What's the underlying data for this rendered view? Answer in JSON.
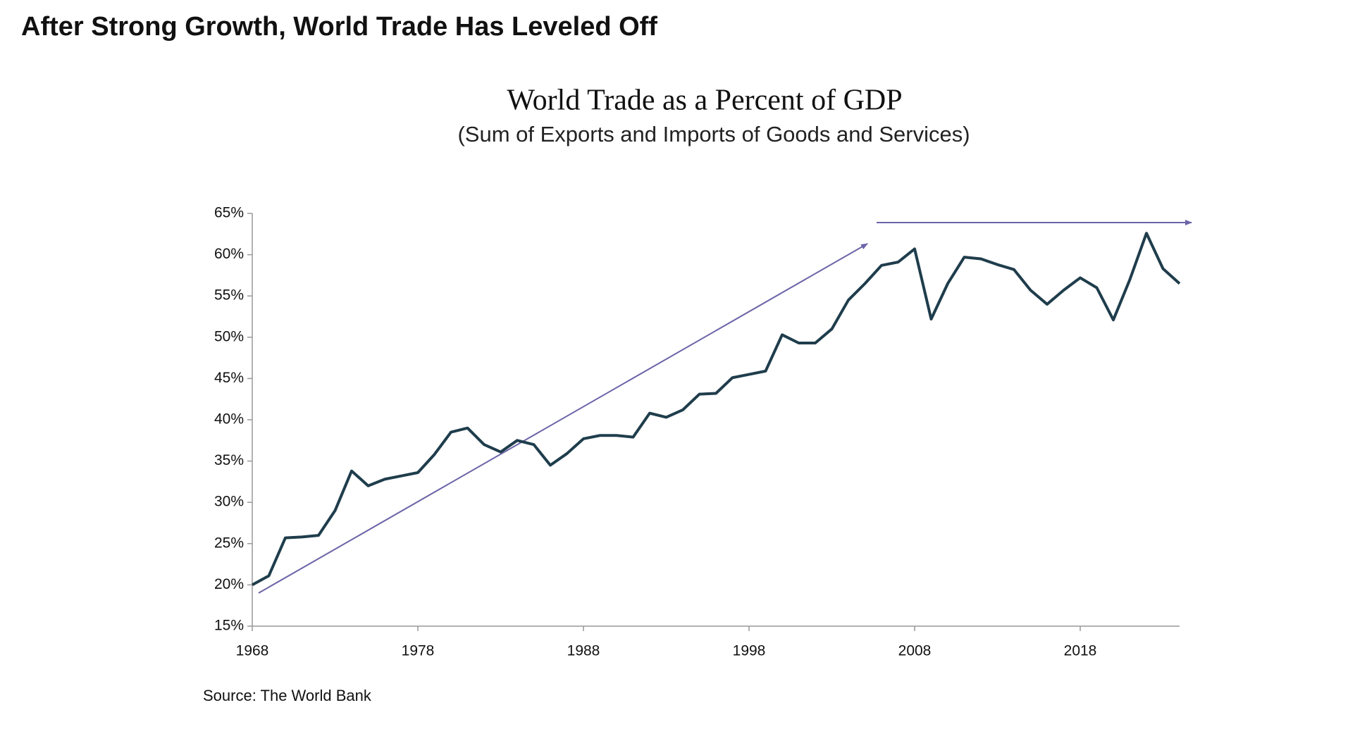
{
  "heading": "After Strong Growth, World Trade Has Leveled Off",
  "chart_data": {
    "type": "line",
    "title": "World Trade as a Percent of GDP",
    "subtitle": "(Sum of Exports and Imports of Goods and Services)",
    "source": "Source: The World Bank",
    "x": [
      1968,
      1969,
      1970,
      1971,
      1972,
      1973,
      1974,
      1975,
      1976,
      1977,
      1978,
      1979,
      1980,
      1981,
      1982,
      1983,
      1984,
      1985,
      1986,
      1987,
      1988,
      1989,
      1990,
      1991,
      1992,
      1993,
      1994,
      1995,
      1996,
      1997,
      1998,
      1999,
      2000,
      2001,
      2002,
      2003,
      2004,
      2005,
      2006,
      2007,
      2008,
      2009,
      2010,
      2011,
      2012,
      2013,
      2014,
      2015,
      2016,
      2017,
      2018,
      2019,
      2020,
      2021,
      2022,
      2023,
      2024
    ],
    "series": [
      {
        "name": "World Trade",
        "color": "#1f3d4c",
        "values": [
          20.0,
          21.1,
          25.7,
          25.8,
          26.0,
          29.0,
          33.8,
          32.0,
          32.8,
          33.2,
          33.6,
          35.8,
          38.5,
          39.0,
          37.0,
          36.1,
          37.5,
          37.0,
          34.5,
          35.9,
          37.7,
          38.1,
          38.1,
          37.9,
          40.8,
          40.3,
          41.2,
          43.1,
          43.2,
          45.1,
          45.5,
          45.9,
          50.3,
          49.3,
          49.3,
          51.0,
          54.5,
          56.5,
          58.7,
          59.1,
          60.7,
          52.2,
          56.5,
          59.7,
          59.5,
          58.8,
          58.2,
          55.7,
          54.0,
          55.7,
          57.2,
          56.0,
          52.1,
          57.0,
          62.6,
          58.3,
          56.5
        ]
      }
    ],
    "xlim": [
      1968,
      2024
    ],
    "xticks": [
      1968,
      1978,
      1988,
      1998,
      2008,
      2018
    ],
    "ylim": [
      15,
      65
    ],
    "yticks": [
      {
        "value": 15,
        "label": "15%"
      },
      {
        "value": 20,
        "label": "20%"
      },
      {
        "value": 25,
        "label": "25%"
      },
      {
        "value": 30,
        "label": "30%"
      },
      {
        "value": 35,
        "label": "35%"
      },
      {
        "value": 40,
        "label": "40%"
      },
      {
        "value": 45,
        "label": "45%"
      },
      {
        "value": 50,
        "label": "50%"
      },
      {
        "value": 55,
        "label": "55%"
      },
      {
        "value": 60,
        "label": "60%"
      },
      {
        "value": 65,
        "label": "65%"
      }
    ],
    "grid": false
  }
}
